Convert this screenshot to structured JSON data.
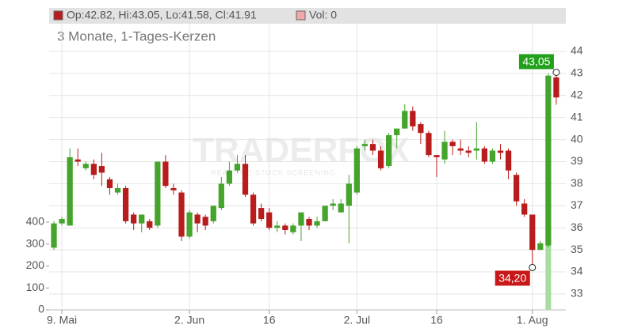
{
  "chart_data": {
    "type": "candlestick",
    "subtitle": "3 Monate, 1-Tages-Kerzen",
    "legend_ohlc": "Op:42.82, Hi:43.05, Lo:41.58, Cl:41.91",
    "legend_volume": "Vol: 0",
    "watermark": "TRADERFOX",
    "watermark_sub": "REALTIME STOCK SCREENING",
    "up_color": "#44a42c",
    "down_color": "#b81c1c",
    "volume_color": "#a8dca0",
    "grid": true,
    "xlim": [
      -0.6,
      64.2
    ],
    "xticks": [
      {
        "value": 1,
        "label": "9. Mai"
      },
      {
        "value": 17,
        "label": "2. Jun"
      },
      {
        "value": 27,
        "label": "16"
      },
      {
        "value": 38,
        "label": "2. Jul"
      },
      {
        "value": 48,
        "label": "16"
      },
      {
        "value": 60,
        "label": "1. Aug"
      }
    ],
    "ylim": [
      32.28,
      45.97
    ],
    "yticks": [
      33,
      34,
      35,
      36,
      37,
      38,
      39,
      40,
      41,
      42,
      43,
      44
    ],
    "y2lim": [
      0,
      1377
    ],
    "y2ticks": [
      0,
      100,
      200,
      300,
      400
    ],
    "open": [
      35.1,
      36.2,
      36.1,
      39.1,
      38.7,
      38.9,
      38.8,
      38.2,
      37.6,
      37.8,
      36.6,
      36.2,
      36.3,
      36.1,
      39.0,
      37.8,
      37.6,
      35.6,
      36.6,
      36.5,
      36.3,
      36.9,
      38.0,
      38.6,
      38.9,
      37.5,
      36.9,
      36.7,
      36.0,
      36.1,
      35.8,
      36.1,
      36.4,
      36.1,
      36.3,
      37.0,
      36.7,
      37.0,
      37.6,
      39.7,
      39.8,
      39.5,
      38.8,
      40.2,
      40.5,
      41.3,
      40.7,
      40.3,
      39.3,
      39.1,
      39.9,
      39.6,
      39.5,
      39.5,
      39.6,
      39.0,
      39.5,
      39.5,
      38.4,
      37.1,
      36.6,
      35.0,
      35.2,
      42.82
    ],
    "high": [
      36.3,
      36.5,
      39.6,
      39.6,
      39.0,
      39.1,
      39.4,
      38.3,
      38.0,
      37.9,
      36.7,
      36.6,
      36.4,
      39.0,
      39.3,
      38.0,
      37.7,
      36.8,
      36.7,
      36.6,
      37.0,
      38.3,
      39.0,
      39.3,
      39.3,
      37.6,
      37.1,
      36.9,
      36.3,
      36.2,
      36.2,
      36.7,
      36.5,
      36.5,
      37.0,
      37.3,
      37.3,
      38.4,
      39.7,
      40.0,
      40.0,
      39.7,
      40.3,
      40.5,
      41.6,
      41.5,
      40.8,
      40.4,
      39.3,
      40.4,
      40.0,
      40.0,
      39.7,
      40.8,
      39.7,
      39.6,
      39.8,
      39.6,
      38.5,
      37.3,
      36.6,
      35.4,
      43.0,
      43.05
    ],
    "low": [
      35.0,
      36.1,
      36.1,
      38.8,
      38.6,
      38.2,
      37.9,
      37.5,
      37.5,
      36.2,
      35.9,
      35.8,
      35.9,
      36.0,
      37.8,
      37.5,
      35.4,
      35.5,
      35.8,
      35.9,
      36.2,
      36.8,
      37.9,
      38.5,
      37.4,
      36.1,
      36.3,
      35.9,
      35.8,
      35.7,
      35.7,
      35.4,
      35.9,
      36.0,
      36.3,
      36.8,
      36.7,
      35.3,
      37.5,
      39.5,
      39.3,
      38.6,
      38.7,
      39.6,
      40.5,
      40.4,
      39.8,
      39.2,
      38.3,
      38.9,
      39.3,
      39.3,
      39.2,
      39.1,
      38.9,
      38.9,
      39.1,
      38.2,
      37.0,
      36.5,
      34.2,
      35.0,
      35.1,
      41.58
    ],
    "close": [
      36.2,
      36.4,
      39.2,
      39.0,
      38.9,
      38.4,
      38.5,
      37.8,
      37.8,
      36.3,
      36.2,
      36.6,
      36.0,
      39.0,
      37.9,
      37.7,
      35.6,
      36.7,
      36.2,
      36.1,
      37.0,
      38.0,
      38.6,
      38.9,
      37.5,
      36.2,
      36.4,
      36.0,
      36.1,
      35.9,
      36.1,
      36.7,
      36.1,
      36.3,
      37.0,
      37.1,
      37.1,
      38.0,
      39.6,
      39.8,
      39.5,
      38.7,
      40.2,
      40.5,
      41.3,
      40.6,
      40.3,
      39.3,
      39.2,
      39.9,
      39.7,
      39.5,
      39.4,
      39.6,
      39.0,
      39.5,
      39.4,
      38.6,
      37.2,
      36.6,
      35.0,
      35.3,
      42.9,
      41.91
    ],
    "volume": [
      0,
      0,
      0,
      0,
      0,
      0,
      0,
      0,
      0,
      0,
      0,
      0,
      0,
      0,
      0,
      0,
      0,
      0,
      0,
      0,
      0,
      0,
      0,
      0,
      0,
      0,
      0,
      0,
      0,
      0,
      0,
      0,
      0,
      0,
      0,
      0,
      0,
      0,
      0,
      0,
      0,
      0,
      0,
      0,
      0,
      0,
      0,
      0,
      0,
      0,
      0,
      0,
      0,
      0,
      0,
      0,
      0,
      0,
      0,
      0,
      0,
      0,
      295,
      0
    ],
    "annotations": [
      {
        "label": "43,05",
        "value": 43.05,
        "color": "#22a01c"
      },
      {
        "label": "34,20",
        "value": 34.2,
        "color": "#c81818"
      }
    ]
  }
}
